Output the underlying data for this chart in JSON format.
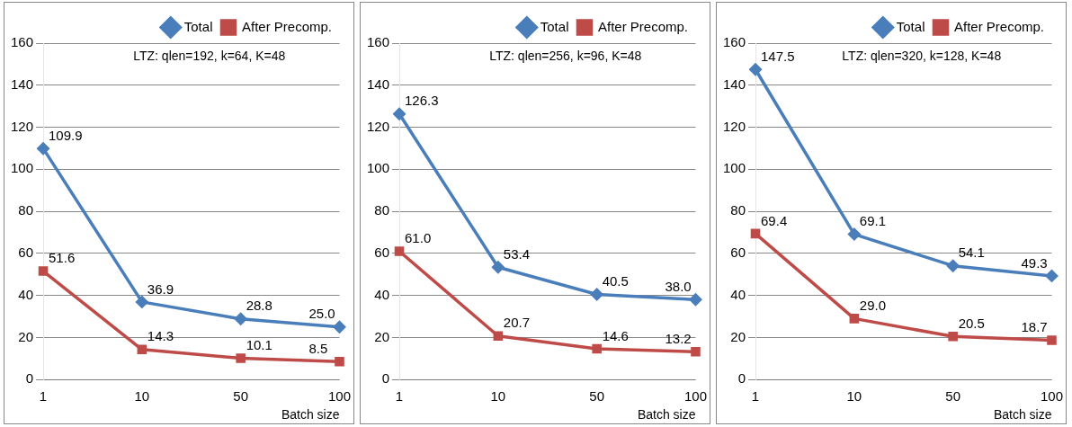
{
  "chart_data": [
    {
      "type": "line",
      "categories": [
        "1",
        "10",
        "50",
        "100"
      ],
      "xlabel": "Batch size",
      "ylim": [
        0,
        160
      ],
      "yticks": [
        0,
        20,
        40,
        60,
        80,
        100,
        120,
        140,
        160
      ],
      "grid": "y",
      "legend": "top right",
      "annotations": [
        "LTZ: qlen=192, k=64, K=48"
      ],
      "series": [
        {
          "name": "Total",
          "color": "#4a7ebb",
          "marker": "diamond",
          "values": [
            109.9,
            36.9,
            28.8,
            25.0
          ],
          "value_labels": [
            "109.9",
            "36.9",
            "28.8",
            "25.0"
          ]
        },
        {
          "name": "After Precomp.",
          "color": "#be4b48",
          "marker": "square",
          "values": [
            51.6,
            14.3,
            10.1,
            8.5
          ],
          "value_labels": [
            "51.6",
            "14.3",
            "10.1",
            "8.5"
          ]
        }
      ]
    },
    {
      "type": "line",
      "categories": [
        "1",
        "10",
        "50",
        "100"
      ],
      "xlabel": "Batch size",
      "ylim": [
        0,
        160
      ],
      "yticks": [
        0,
        20,
        40,
        60,
        80,
        100,
        120,
        140,
        160
      ],
      "grid": "y",
      "legend": "top right",
      "annotations": [
        "LTZ: qlen=256, k=96, K=48"
      ],
      "series": [
        {
          "name": "Total",
          "color": "#4a7ebb",
          "marker": "diamond",
          "values": [
            126.3,
            53.4,
            40.5,
            38.0
          ],
          "value_labels": [
            "126.3",
            "53.4",
            "40.5",
            "38.0"
          ]
        },
        {
          "name": "After Precomp.",
          "color": "#be4b48",
          "marker": "square",
          "values": [
            61.0,
            20.7,
            14.6,
            13.2
          ],
          "value_labels": [
            "61.0",
            "20.7",
            "14.6",
            "13.2"
          ]
        }
      ]
    },
    {
      "type": "line",
      "categories": [
        "1",
        "10",
        "50",
        "100"
      ],
      "xlabel": "Batch size",
      "ylim": [
        0,
        160
      ],
      "yticks": [
        0,
        20,
        40,
        60,
        80,
        100,
        120,
        140,
        160
      ],
      "grid": "y",
      "legend": "top right",
      "annotations": [
        "LTZ: qlen=320, k=128, K=48"
      ],
      "series": [
        {
          "name": "Total",
          "color": "#4a7ebb",
          "marker": "diamond",
          "values": [
            147.5,
            69.1,
            54.1,
            49.3
          ],
          "value_labels": [
            "147.5",
            "69.1",
            "54.1",
            "49.3"
          ]
        },
        {
          "name": "After Precomp.",
          "color": "#be4b48",
          "marker": "square",
          "values": [
            69.4,
            29.0,
            20.5,
            18.7
          ],
          "value_labels": [
            "69.4",
            "29.0",
            "20.5",
            "18.7"
          ]
        }
      ]
    }
  ]
}
